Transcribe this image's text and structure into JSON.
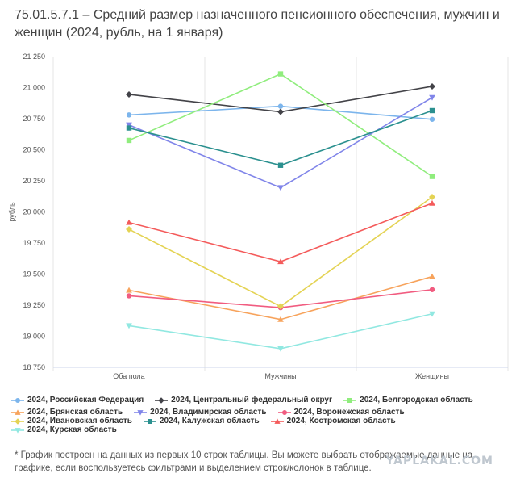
{
  "title": "75.01.5.7.1 – Средний размер назначенного пенсионного обеспечения, мужчин и женщин (2024, рубль, на 1 января)",
  "footnote": "* График построен на данных из первых 10 строк таблицы. Вы можете выбрать отображаемые данные на графике, если воспользуетесь фильтрами и выделением строк/колонок в таблице.",
  "watermark": "YAPLAKAL.COM",
  "chart_data": {
    "type": "line",
    "title": "75.01.5.7.1 – Средний размер назначенного пенсионного обеспечения, мужчин и женщин (2024, рубль, на 1 января)",
    "xlabel": "",
    "ylabel": "рубль",
    "categories": [
      "Оба пола",
      "Мужчины",
      "Женщины"
    ],
    "ylim": [
      18750,
      21250
    ],
    "yticks": [
      18750,
      19000,
      19250,
      19500,
      19750,
      20000,
      20250,
      20500,
      20750,
      21000,
      21250
    ],
    "ytick_labels": [
      "18 750",
      "19 000",
      "19 250",
      "19 500",
      "19 750",
      "20 000",
      "20 250",
      "20 500",
      "20 750",
      "21 000",
      "21 250"
    ],
    "grid": "vertical",
    "legend_position": "bottom",
    "series": [
      {
        "name": "2024, Российская Федерация",
        "values": [
          20780,
          20850,
          20745
        ],
        "color": "#7cb5ec",
        "marker": "circle"
      },
      {
        "name": "2024, Центральный федеральный округ",
        "values": [
          20945,
          20805,
          21010
        ],
        "color": "#434348",
        "marker": "diamond"
      },
      {
        "name": "2024, Белгородская область",
        "values": [
          20575,
          21110,
          20285
        ],
        "color": "#90ed7d",
        "marker": "square"
      },
      {
        "name": "2024, Брянская область",
        "values": [
          19370,
          19135,
          19480
        ],
        "color": "#f7a35c",
        "marker": "triangle"
      },
      {
        "name": "2024, Владимирская область",
        "values": [
          20700,
          20195,
          20920
        ],
        "color": "#8085e9",
        "marker": "triangle-down"
      },
      {
        "name": "2024, Воронежская область",
        "values": [
          19325,
          19230,
          19375
        ],
        "color": "#f15c80",
        "marker": "circle"
      },
      {
        "name": "2024, Ивановская область",
        "values": [
          19860,
          19240,
          20120
        ],
        "color": "#e4d354",
        "marker": "diamond"
      },
      {
        "name": "2024, Калужская область",
        "values": [
          20675,
          20375,
          20815
        ],
        "color": "#2b908f",
        "marker": "square"
      },
      {
        "name": "2024, Костромская область",
        "values": [
          19915,
          19600,
          20070
        ],
        "color": "#f45b5b",
        "marker": "triangle"
      },
      {
        "name": "2024, Курская область",
        "values": [
          19085,
          18900,
          19180
        ],
        "color": "#91e8e1",
        "marker": "triangle-down"
      }
    ]
  }
}
